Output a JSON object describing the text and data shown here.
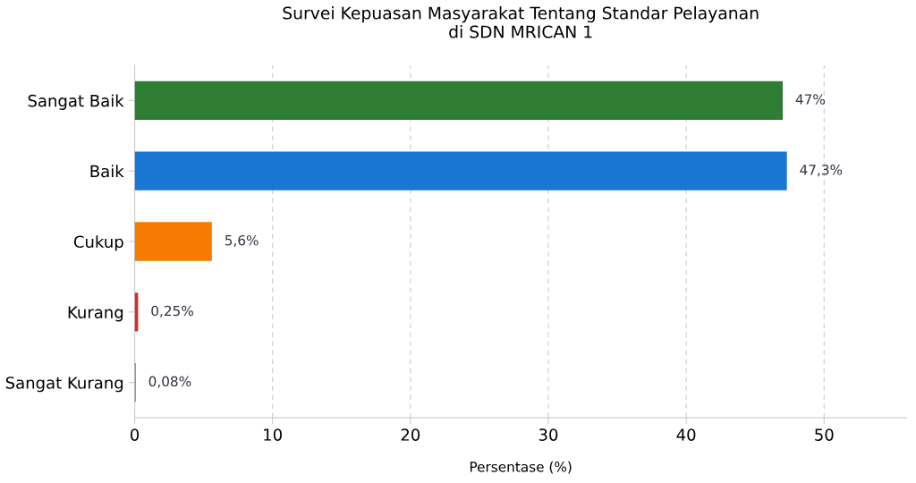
{
  "chart_data": {
    "type": "bar",
    "orientation": "horizontal",
    "title": "Survei Kepuasan Masyarakat Tentang Standar Pelayanan\ndi SDN MRICAN 1",
    "xlabel": "Persentase (%)",
    "categories": [
      "Sangat Baik",
      "Baik",
      "Cukup",
      "Kurang",
      "Sangat Kurang"
    ],
    "values": [
      47,
      47.3,
      5.6,
      0.25,
      0.08
    ],
    "value_labels": [
      "47%",
      "47,3%",
      "5,6%",
      "0,25%",
      "0,08%"
    ],
    "colors": [
      "#2e7d32",
      "#1976d2",
      "#f57c00",
      "#d32f2f",
      "#757575"
    ],
    "xlim": [
      0,
      56
    ],
    "xticks": [
      0,
      10,
      20,
      30,
      40,
      50
    ],
    "grid": "x",
    "legend": false
  }
}
